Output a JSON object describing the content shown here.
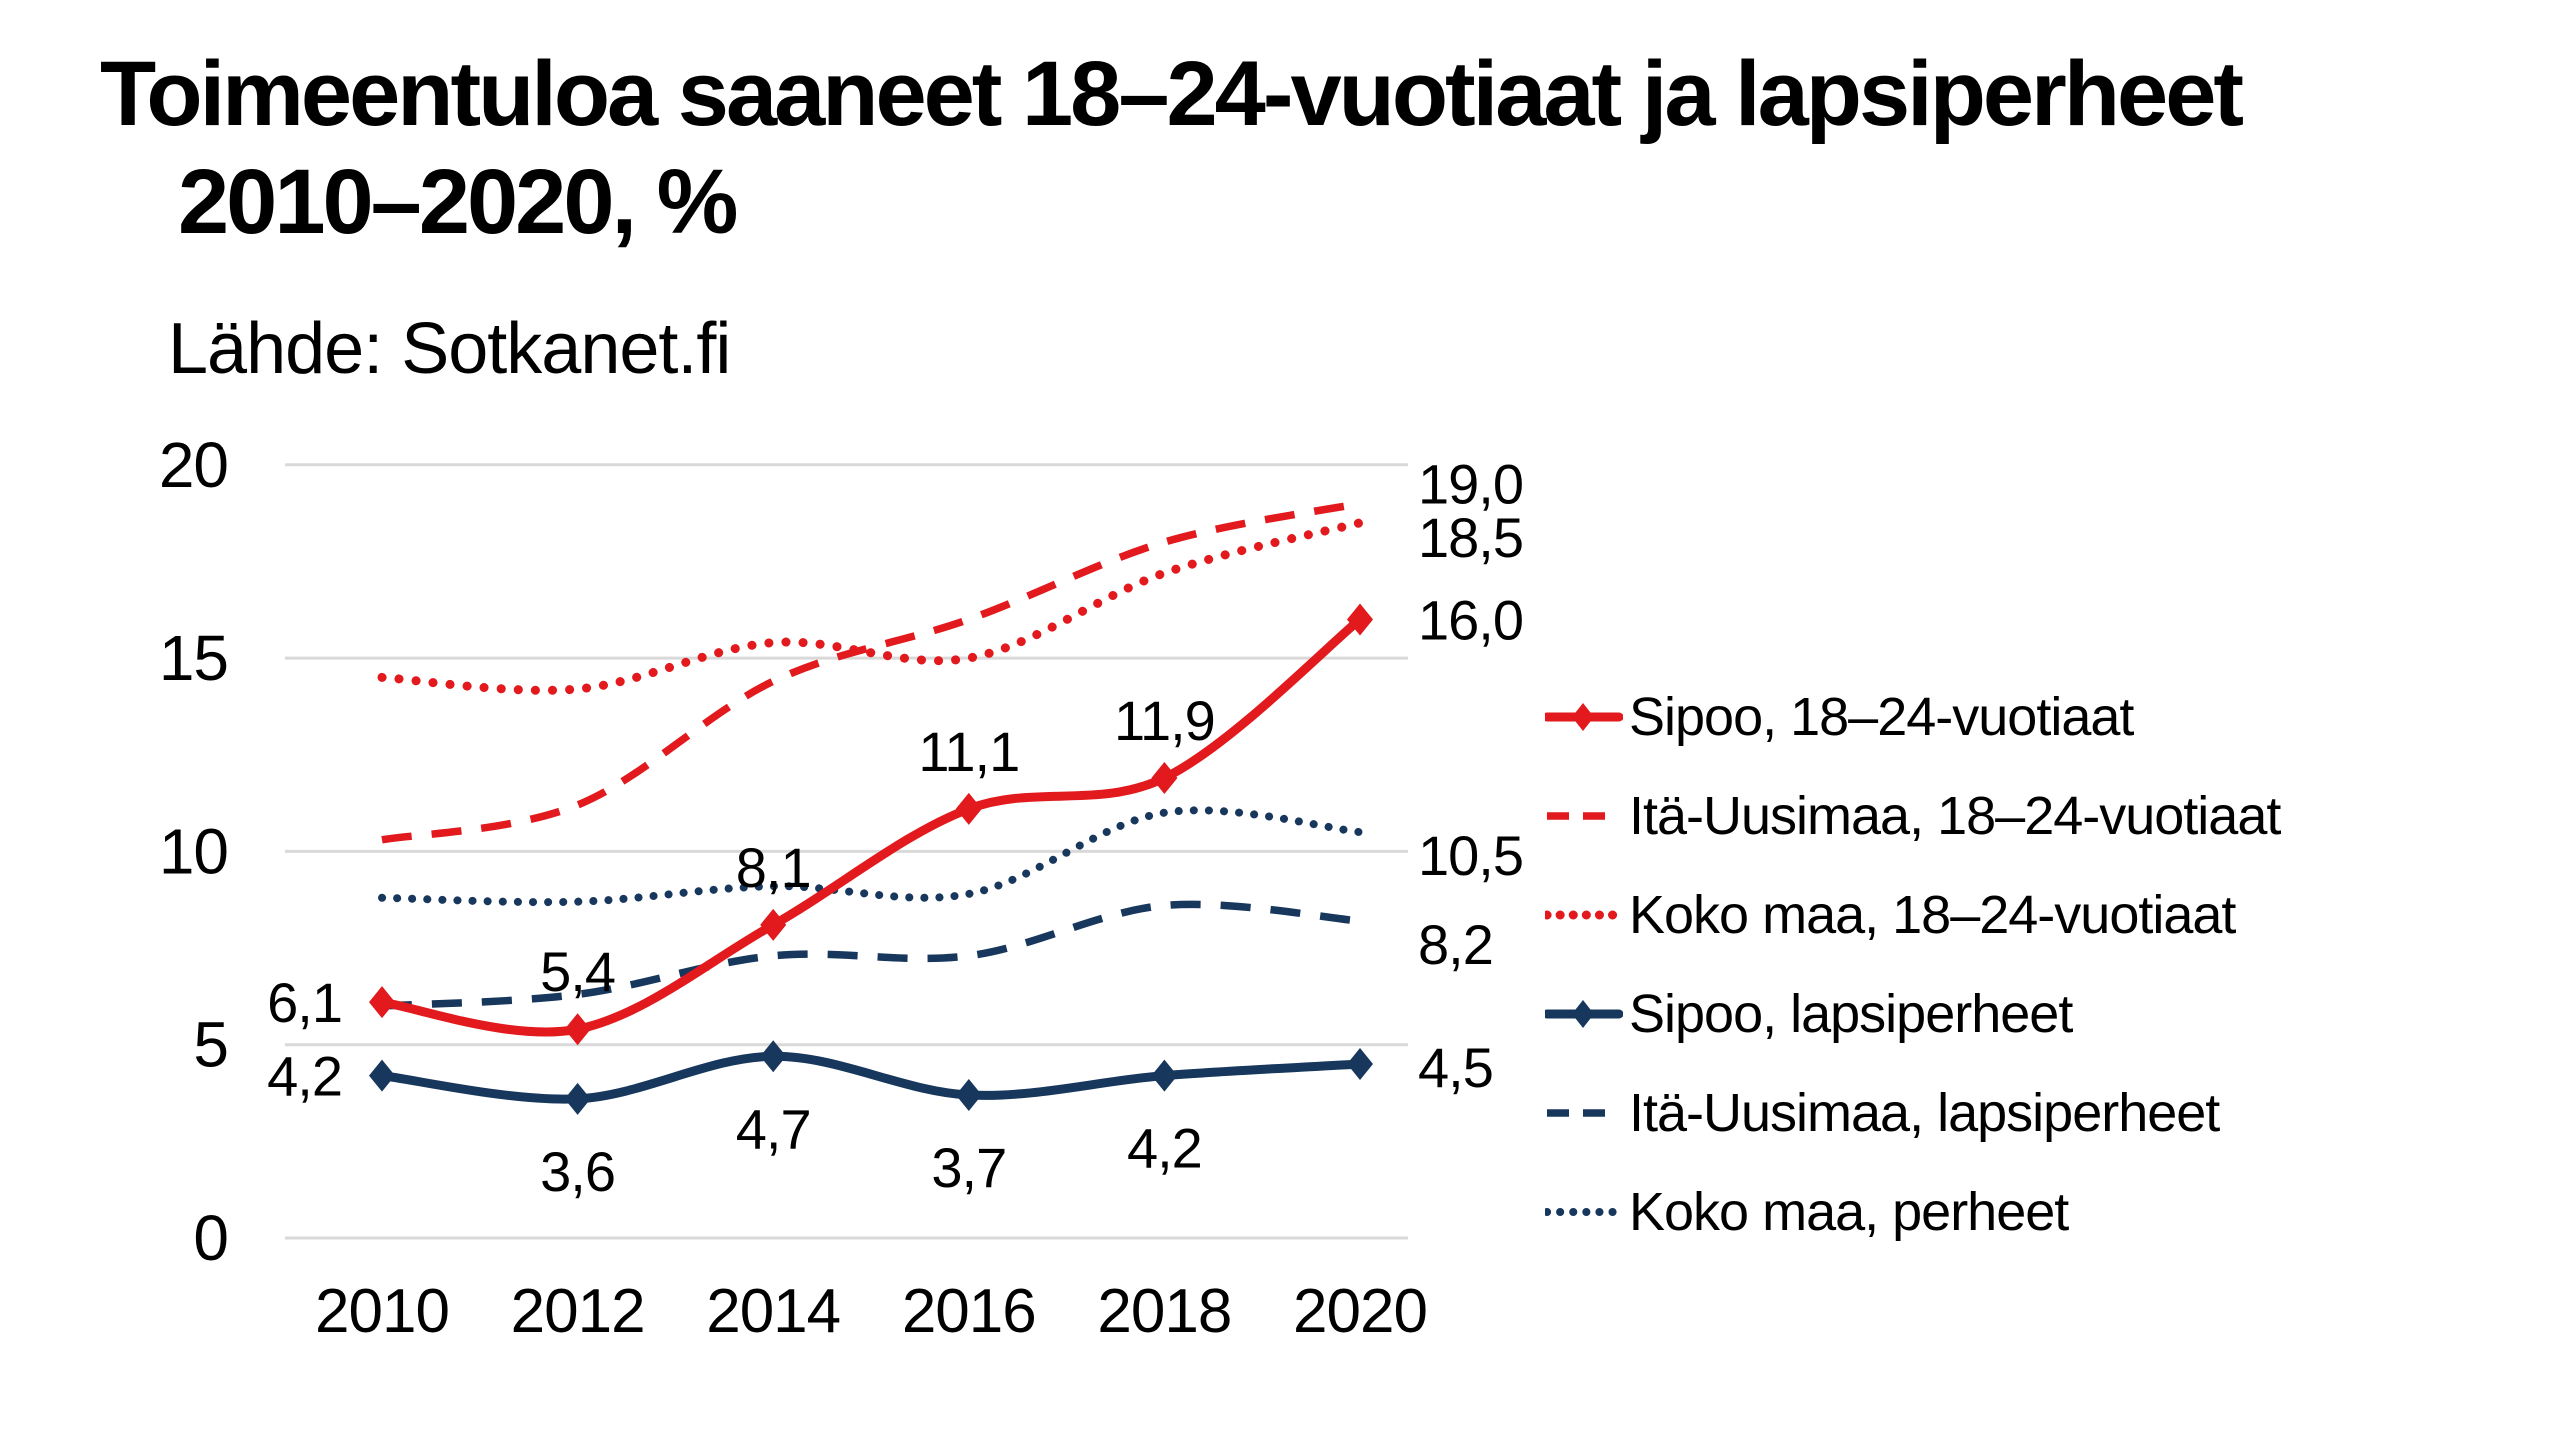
{
  "page": {
    "background": "#ffffff"
  },
  "header": {
    "title_line1": "Toimeentuloa saaneet 18–24-vuotiaat ja lapsiperheet",
    "title_line2": "2010–2020, %",
    "source": "Lähde: Sotkanet.fi"
  },
  "colors": {
    "red": "#e2191d",
    "navy": "#17375d",
    "gridline": "#d9d9d9",
    "text": "#000000"
  },
  "chart_data": {
    "type": "line",
    "title": "Toimeentuloa saaneet 18–24-vuotiaat ja lapsiperheet 2010–2020, %",
    "subtitle": "Lähde: Sotkanet.fi",
    "categories": [
      2010,
      2012,
      2014,
      2016,
      2018,
      2020
    ],
    "xlabel": "",
    "ylabel": "",
    "ylim": [
      0,
      20
    ],
    "yticks": [
      0,
      5,
      10,
      15,
      20
    ],
    "grid": "horizontal",
    "legend_position": "right",
    "line_smoothing": true,
    "series": [
      {
        "name": "Sipoo, 18–24-vuotiaat",
        "values": [
          6.1,
          5.4,
          8.1,
          11.1,
          11.9,
          16.0
        ],
        "color_key": "red",
        "line_style": "solid",
        "marker": "diamond",
        "point_labels": [
          "6,1",
          "5,4",
          "8,1",
          "11,1",
          "11,9"
        ],
        "end_label": "16,0"
      },
      {
        "name": "Itä-Uusimaa, 18–24-vuotiaat",
        "values": [
          10.3,
          11.2,
          14.4,
          16.0,
          18.0,
          19.0
        ],
        "color_key": "red",
        "line_style": "dashed",
        "marker": "none",
        "point_labels": [],
        "end_label": "19,0"
      },
      {
        "name": "Koko maa, 18–24-vuotiaat",
        "values": [
          14.5,
          14.2,
          15.4,
          15.0,
          17.2,
          18.5
        ],
        "color_key": "red",
        "line_style": "dotted",
        "marker": "none",
        "point_labels": [],
        "end_label": "18,5"
      },
      {
        "name": "Sipoo, lapsiperheet",
        "values": [
          4.2,
          3.6,
          4.7,
          3.7,
          4.2,
          4.5
        ],
        "color_key": "navy",
        "line_style": "solid",
        "marker": "diamond",
        "point_labels": [
          "4,2",
          "3,6",
          "4,7",
          "3,7",
          "4,2"
        ],
        "end_label": "4,5"
      },
      {
        "name": "Itä-Uusimaa, lapsiperheet",
        "values": [
          6.0,
          6.3,
          7.3,
          7.3,
          8.6,
          8.2
        ],
        "color_key": "navy",
        "line_style": "dashed",
        "marker": "none",
        "point_labels": [],
        "end_label": "8,2"
      },
      {
        "name": "Koko maa, perheet",
        "values": [
          8.8,
          8.7,
          9.1,
          8.9,
          11.0,
          10.5
        ],
        "color_key": "navy",
        "line_style": "dotted",
        "marker": "none",
        "point_labels": [],
        "end_label": "10,5"
      }
    ]
  }
}
